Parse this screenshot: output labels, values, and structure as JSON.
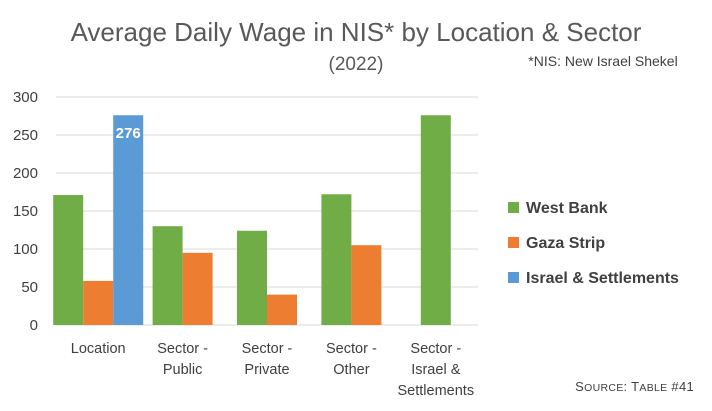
{
  "chart_data": {
    "type": "bar",
    "title": "Average Daily Wage in NIS* by Location & Sector",
    "subtitle": "(2022)",
    "note": "*NIS: New Israel Shekel",
    "source": "Source: Table #41",
    "categories": [
      [
        "Location"
      ],
      [
        "Sector -",
        "Public"
      ],
      [
        "Sector -",
        "Private"
      ],
      [
        "Sector -",
        "Other"
      ],
      [
        "Sector -",
        "Israel &",
        "Settlements"
      ]
    ],
    "series": [
      {
        "name": "West Bank",
        "color": "#70ad47",
        "values": [
          171,
          130,
          124,
          172,
          276
        ]
      },
      {
        "name": "Gaza Strip",
        "color": "#ed7d31",
        "values": [
          58,
          95,
          40,
          105,
          null
        ]
      },
      {
        "name": "Israel & Settlements",
        "color": "#5b9bd5",
        "values": [
          276,
          null,
          null,
          null,
          null
        ]
      }
    ],
    "data_labels": [
      {
        "series": 2,
        "category": 0,
        "text": "276"
      }
    ],
    "yticks": [
      "0",
      "50",
      "100",
      "150",
      "200",
      "250",
      "300"
    ],
    "ylim": [
      0,
      300
    ],
    "grid": true,
    "legend_position": "right"
  }
}
